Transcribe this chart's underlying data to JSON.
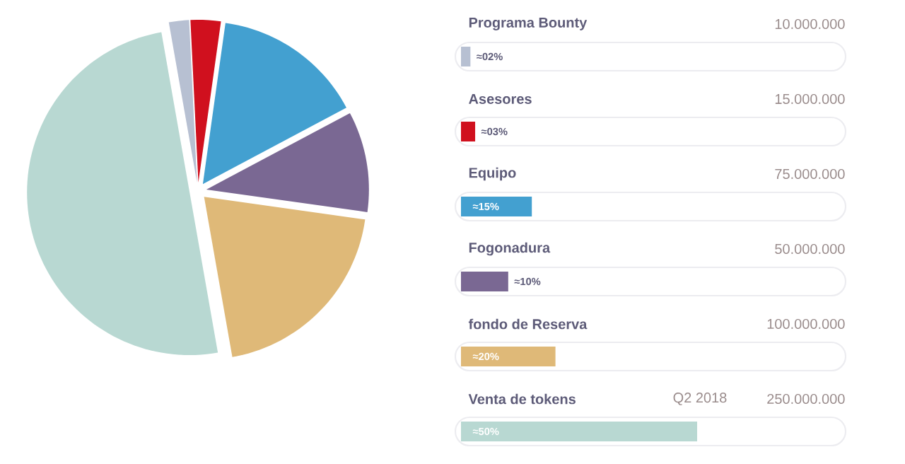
{
  "chart_data": [
    {
      "type": "pie",
      "categories": [
        null,
        null,
        null,
        null,
        null,
        null
      ],
      "values": [
        2,
        3,
        15,
        10,
        20,
        50
      ],
      "colors": [
        "#b7c0d2",
        "#d0101e",
        "#43a0d0",
        "#7a6893",
        "#dfb978",
        "#b8d8d2"
      ]
    },
    {
      "type": "bar",
      "orientation": "horizontal",
      "categories": [
        "Programa Bounty",
        "Asesores",
        "Equipo",
        "Fogonadura",
        "fondo de Reserva",
        "Venta de tokens"
      ],
      "values": [
        2,
        3,
        15,
        10,
        20,
        50
      ],
      "value_labels": [
        "≈02%",
        "≈03%",
        "≈15%",
        "≈10%",
        "≈20%",
        "≈50%"
      ],
      "colors": [
        "#b7c0d2",
        "#d0101e",
        "#43a0d0",
        "#7a6893",
        "#dfb978",
        "#b8d8d2"
      ],
      "annotations": [
        "10.000.000",
        "15.000.000",
        "75.000.000",
        "50.000.000",
        "100.000.000",
        "250.000.000",
        "Q2 2018"
      ]
    }
  ]
}
